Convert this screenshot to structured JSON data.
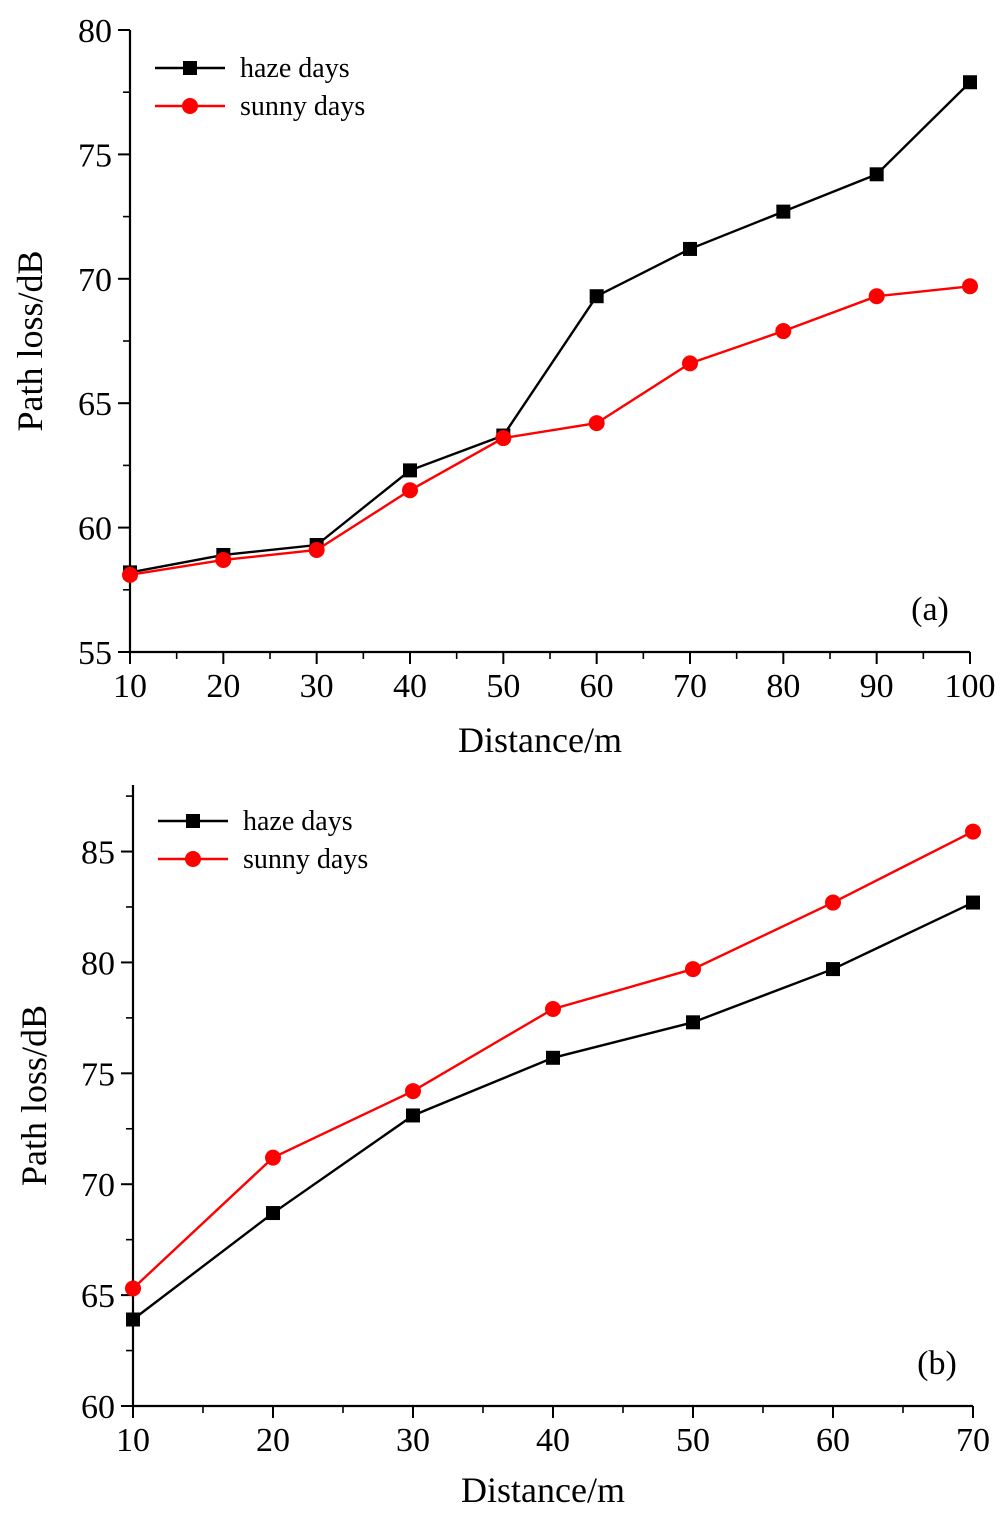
{
  "chart_data": [
    {
      "type": "line",
      "panel_label": "(a)",
      "xlabel": "Distance/m",
      "ylabel": "Path loss/dB",
      "xlim": [
        10,
        100
      ],
      "ylim": [
        55,
        80
      ],
      "xticks": [
        10,
        20,
        30,
        40,
        50,
        60,
        70,
        80,
        90,
        100
      ],
      "yticks": [
        55,
        60,
        65,
        70,
        75,
        80
      ],
      "legend_position": "top-left",
      "grid": false,
      "x": [
        10,
        20,
        30,
        40,
        50,
        60,
        70,
        80,
        90,
        100
      ],
      "series": [
        {
          "name": "haze days",
          "color": "#000000",
          "marker": "square",
          "values": [
            58.2,
            58.9,
            59.3,
            62.3,
            63.7,
            69.3,
            71.2,
            72.7,
            74.2,
            77.9
          ]
        },
        {
          "name": "sunny days",
          "color": "#ff0000",
          "marker": "circle",
          "values": [
            58.1,
            58.7,
            59.1,
            61.5,
            63.6,
            64.2,
            66.6,
            67.9,
            69.3,
            69.7
          ]
        }
      ]
    },
    {
      "type": "line",
      "panel_label": "(b)",
      "xlabel": "Distance/m",
      "ylabel": "Path loss/dB",
      "xlim": [
        10,
        70
      ],
      "ylim": [
        60,
        88
      ],
      "xticks": [
        10,
        20,
        30,
        40,
        50,
        60,
        70
      ],
      "yticks": [
        60,
        65,
        70,
        75,
        80,
        85
      ],
      "legend_position": "top-left",
      "grid": false,
      "x": [
        10,
        20,
        30,
        40,
        50,
        60,
        70
      ],
      "series": [
        {
          "name": "haze days",
          "color": "#000000",
          "marker": "square",
          "values": [
            63.9,
            68.7,
            73.1,
            75.7,
            77.3,
            79.7,
            82.7
          ]
        },
        {
          "name": "sunny days",
          "color": "#ff0000",
          "marker": "circle",
          "values": [
            65.3,
            71.2,
            74.2,
            77.9,
            79.7,
            82.7,
            85.9
          ]
        }
      ]
    }
  ]
}
